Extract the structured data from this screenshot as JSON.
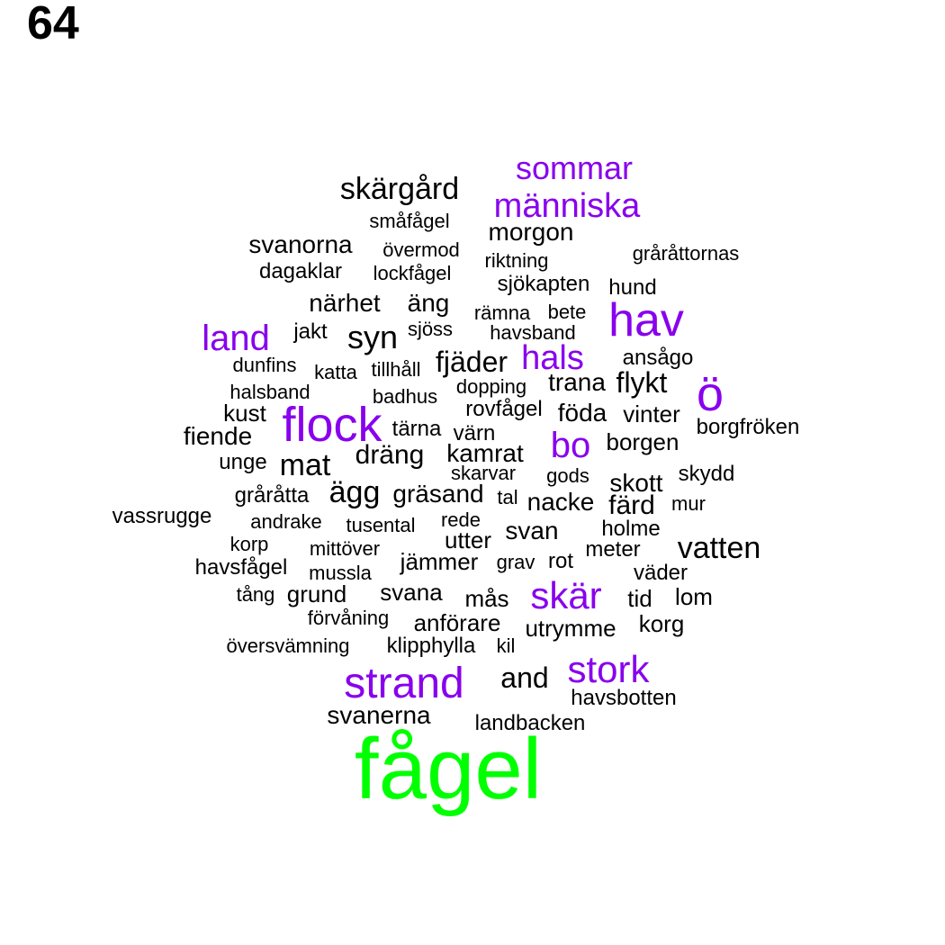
{
  "page_number": "64",
  "colors": {
    "primary": "#00ff00",
    "accent": "#8800ee",
    "base": "#000000"
  },
  "words": [
    {
      "text": "fågel",
      "tier": "primary"
    },
    {
      "text": "sommar",
      "tier": "accent"
    },
    {
      "text": "skärgård",
      "tier": "base"
    },
    {
      "text": "människa",
      "tier": "accent"
    },
    {
      "text": "småfågel",
      "tier": "base"
    },
    {
      "text": "morgon",
      "tier": "base"
    },
    {
      "text": "svanorna",
      "tier": "base"
    },
    {
      "text": "övermod",
      "tier": "base"
    },
    {
      "text": "gråråttornas",
      "tier": "base"
    },
    {
      "text": "riktning",
      "tier": "base"
    },
    {
      "text": "dagaklar",
      "tier": "base"
    },
    {
      "text": "lockfågel",
      "tier": "base"
    },
    {
      "text": "sjökapten",
      "tier": "base"
    },
    {
      "text": "hund",
      "tier": "base"
    },
    {
      "text": "närhet",
      "tier": "base"
    },
    {
      "text": "äng",
      "tier": "base"
    },
    {
      "text": "rämna",
      "tier": "base"
    },
    {
      "text": "bete",
      "tier": "base"
    },
    {
      "text": "hav",
      "tier": "accent"
    },
    {
      "text": "land",
      "tier": "accent"
    },
    {
      "text": "jakt",
      "tier": "base"
    },
    {
      "text": "syn",
      "tier": "base"
    },
    {
      "text": "sjöss",
      "tier": "base"
    },
    {
      "text": "havsband",
      "tier": "base"
    },
    {
      "text": "dunfins",
      "tier": "base"
    },
    {
      "text": "katta",
      "tier": "base"
    },
    {
      "text": "tillhåll",
      "tier": "base"
    },
    {
      "text": "fjäder",
      "tier": "base"
    },
    {
      "text": "hals",
      "tier": "accent"
    },
    {
      "text": "ansågo",
      "tier": "base"
    },
    {
      "text": "ö",
      "tier": "accent"
    },
    {
      "text": "halsband",
      "tier": "base"
    },
    {
      "text": "badhus",
      "tier": "base"
    },
    {
      "text": "dopping",
      "tier": "base"
    },
    {
      "text": "trana",
      "tier": "base"
    },
    {
      "text": "flykt",
      "tier": "base"
    },
    {
      "text": "kust",
      "tier": "base"
    },
    {
      "text": "flock",
      "tier": "accent"
    },
    {
      "text": "rovfågel",
      "tier": "base"
    },
    {
      "text": "föda",
      "tier": "base"
    },
    {
      "text": "vinter",
      "tier": "base"
    },
    {
      "text": "borgfröken",
      "tier": "base"
    },
    {
      "text": "fiende",
      "tier": "base"
    },
    {
      "text": "tärna",
      "tier": "base"
    },
    {
      "text": "värn",
      "tier": "base"
    },
    {
      "text": "bo",
      "tier": "accent"
    },
    {
      "text": "borgen",
      "tier": "base"
    },
    {
      "text": "unge",
      "tier": "base"
    },
    {
      "text": "mat",
      "tier": "base"
    },
    {
      "text": "dräng",
      "tier": "base"
    },
    {
      "text": "kamrat",
      "tier": "base"
    },
    {
      "text": "skarvar",
      "tier": "base"
    },
    {
      "text": "gods",
      "tier": "base"
    },
    {
      "text": "skott",
      "tier": "base"
    },
    {
      "text": "skydd",
      "tier": "base"
    },
    {
      "text": "gråråtta",
      "tier": "base"
    },
    {
      "text": "ägg",
      "tier": "base"
    },
    {
      "text": "gräsand",
      "tier": "base"
    },
    {
      "text": "tal",
      "tier": "base"
    },
    {
      "text": "nacke",
      "tier": "base"
    },
    {
      "text": "färd",
      "tier": "base"
    },
    {
      "text": "mur",
      "tier": "base"
    },
    {
      "text": "vassrugge",
      "tier": "base"
    },
    {
      "text": "andrake",
      "tier": "base"
    },
    {
      "text": "tusental",
      "tier": "base"
    },
    {
      "text": "rede",
      "tier": "base"
    },
    {
      "text": "svan",
      "tier": "base"
    },
    {
      "text": "holme",
      "tier": "base"
    },
    {
      "text": "korp",
      "tier": "base"
    },
    {
      "text": "utter",
      "tier": "base"
    },
    {
      "text": "mittöver",
      "tier": "base"
    },
    {
      "text": "meter",
      "tier": "base"
    },
    {
      "text": "vatten",
      "tier": "base"
    },
    {
      "text": "havsfågel",
      "tier": "base"
    },
    {
      "text": "jämmer",
      "tier": "base"
    },
    {
      "text": "grav",
      "tier": "base"
    },
    {
      "text": "rot",
      "tier": "base"
    },
    {
      "text": "mussla",
      "tier": "base"
    },
    {
      "text": "väder",
      "tier": "base"
    },
    {
      "text": "tång",
      "tier": "base"
    },
    {
      "text": "grund",
      "tier": "base"
    },
    {
      "text": "svana",
      "tier": "base"
    },
    {
      "text": "mås",
      "tier": "base"
    },
    {
      "text": "skär",
      "tier": "accent"
    },
    {
      "text": "tid",
      "tier": "base"
    },
    {
      "text": "lom",
      "tier": "base"
    },
    {
      "text": "förvåning",
      "tier": "base"
    },
    {
      "text": "anförare",
      "tier": "base"
    },
    {
      "text": "utrymme",
      "tier": "base"
    },
    {
      "text": "korg",
      "tier": "base"
    },
    {
      "text": "översvämning",
      "tier": "base"
    },
    {
      "text": "klipphylla",
      "tier": "base"
    },
    {
      "text": "kil",
      "tier": "base"
    },
    {
      "text": "strand",
      "tier": "accent"
    },
    {
      "text": "and",
      "tier": "base"
    },
    {
      "text": "stork",
      "tier": "accent"
    },
    {
      "text": "havsbotten",
      "tier": "base"
    },
    {
      "text": "svanerna",
      "tier": "base"
    },
    {
      "text": "landbacken",
      "tier": "base"
    }
  ]
}
